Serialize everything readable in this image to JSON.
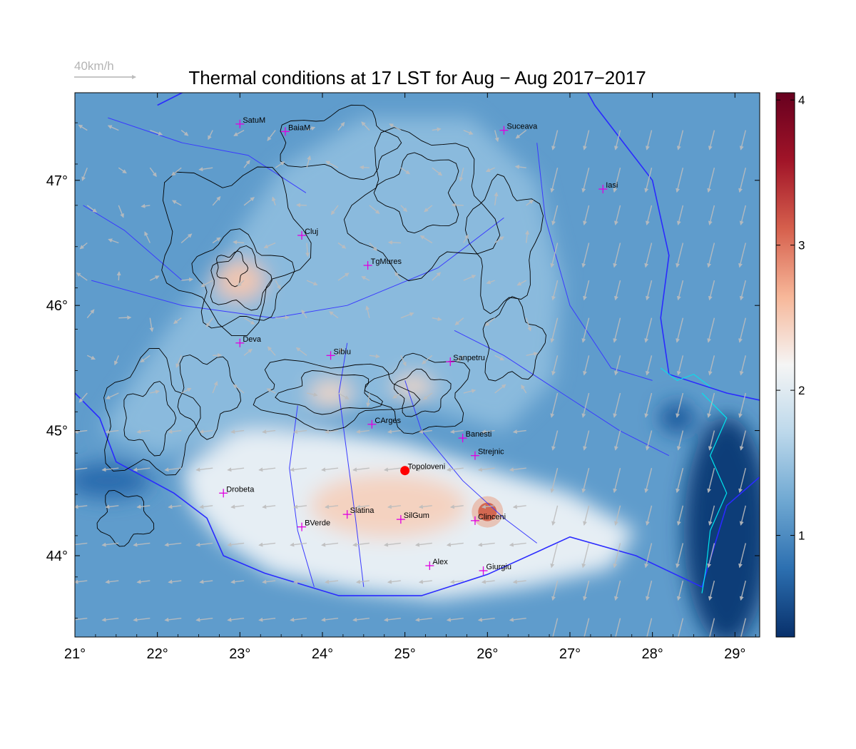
{
  "title": "Thermal conditions at 17 LST for Aug − Aug  2017−2017",
  "wind_scale": {
    "label": "40km/h",
    "color": "#b4b4b4"
  },
  "map": {
    "lon_range": [
      21,
      29.3
    ],
    "lat_range": [
      43.35,
      47.7
    ],
    "x_ticks": [
      {
        "value": 21,
        "label": "21°"
      },
      {
        "value": 22,
        "label": "22°"
      },
      {
        "value": 23,
        "label": "23°"
      },
      {
        "value": 24,
        "label": "24°"
      },
      {
        "value": 25,
        "label": "25°"
      },
      {
        "value": 26,
        "label": "26°"
      },
      {
        "value": 27,
        "label": "27°"
      },
      {
        "value": 28,
        "label": "28°"
      },
      {
        "value": 29,
        "label": "29°"
      }
    ],
    "y_ticks": [
      {
        "value": 44,
        "label": "44°"
      },
      {
        "value": 45,
        "label": "45°"
      },
      {
        "value": 46,
        "label": "46°"
      },
      {
        "value": 47,
        "label": "47°"
      }
    ],
    "colors": {
      "border": "#0000ff",
      "contour": "#000000",
      "coast": "#00e5ee",
      "city_marker": "#e000e0",
      "highlight_marker": "#ff0000",
      "wind_arrow": "#bdbdbd"
    }
  },
  "colorbar": {
    "min": 0.3,
    "max": 4.05,
    "ticks": [
      {
        "value": 1,
        "label": "1"
      },
      {
        "value": 2,
        "label": "2"
      },
      {
        "value": 3,
        "label": "3"
      },
      {
        "value": 4,
        "label": "4"
      }
    ],
    "stops": [
      "#08306b",
      "#2c6fb0",
      "#6fa8d2",
      "#bcd8eb",
      "#f5f5f5",
      "#f7b799",
      "#d6604d",
      "#a11428",
      "#67001f"
    ]
  },
  "cities": [
    {
      "name": "SatuM",
      "lon": 23.0,
      "lat": 47.45
    },
    {
      "name": "BaiaM",
      "lon": 23.55,
      "lat": 47.39
    },
    {
      "name": "Suceava",
      "lon": 26.2,
      "lat": 47.4
    },
    {
      "name": "Iasi",
      "lon": 27.4,
      "lat": 46.93
    },
    {
      "name": "Cluj",
      "lon": 23.75,
      "lat": 46.56
    },
    {
      "name": "TgMures",
      "lon": 24.55,
      "lat": 46.32
    },
    {
      "name": "Deva",
      "lon": 23.0,
      "lat": 45.7
    },
    {
      "name": "Sibiu",
      "lon": 24.1,
      "lat": 45.6
    },
    {
      "name": "Sanpetru",
      "lon": 25.55,
      "lat": 45.55
    },
    {
      "name": "CArges",
      "lon": 24.6,
      "lat": 45.05
    },
    {
      "name": "Banesti",
      "lon": 25.7,
      "lat": 44.94
    },
    {
      "name": "Strejnic",
      "lon": 25.85,
      "lat": 44.8
    },
    {
      "name": "Topoloveni",
      "lon": 25.0,
      "lat": 44.68,
      "highlight": true
    },
    {
      "name": "Drobeta",
      "lon": 22.8,
      "lat": 44.5
    },
    {
      "name": "Slatina",
      "lon": 24.3,
      "lat": 44.33
    },
    {
      "name": "SilGum",
      "lon": 24.95,
      "lat": 44.29
    },
    {
      "name": "Clinceni",
      "lon": 25.85,
      "lat": 44.28
    },
    {
      "name": "BVerde",
      "lon": 23.75,
      "lat": 44.23
    },
    {
      "name": "Alex",
      "lon": 25.3,
      "lat": 43.92
    },
    {
      "name": "Giurgiu",
      "lon": 25.95,
      "lat": 43.88
    }
  ]
}
